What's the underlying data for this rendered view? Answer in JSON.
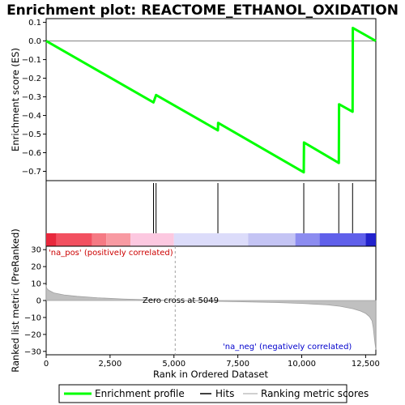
{
  "chart_data": {
    "type": "line",
    "title": "Enrichment plot: REACTOME_ETHANOL_OXIDATION",
    "xlabel": "Rank in Ordered Dataset",
    "xlim": [
      0,
      12900
    ],
    "x_ticks": [
      0,
      2500,
      5000,
      7500,
      10000,
      12500
    ],
    "x_tick_labels": [
      "0",
      "2,500",
      "5,000",
      "7,500",
      "10,000",
      "12,500"
    ],
    "es_panel": {
      "ylabel": "Enrichment score (ES)",
      "ylim": [
        -0.75,
        0.12
      ],
      "y_ticks": [
        0.1,
        0.0,
        -0.1,
        -0.2,
        -0.3,
        -0.4,
        -0.5,
        -0.6,
        -0.7
      ],
      "y_tick_labels": [
        "0.1",
        "0.0",
        "−0.1",
        "−0.2",
        "−0.3",
        "−0.4",
        "−0.5",
        "−0.6",
        "−0.7"
      ],
      "series": [
        {
          "name": "Enrichment profile",
          "color": "#00ff00",
          "x": [
            0,
            4200,
            4300,
            6720,
            6730,
            10080,
            10090,
            11450,
            11460,
            11990,
            12000,
            12900
          ],
          "y": [
            0.0,
            -0.33,
            -0.29,
            -0.48,
            -0.44,
            -0.705,
            -0.545,
            -0.655,
            -0.34,
            -0.38,
            0.07,
            0.0
          ]
        }
      ]
    },
    "hits": [
      4200,
      4300,
      6720,
      10080,
      11450,
      11990
    ],
    "color_band": {
      "segments": [
        {
          "x0": 0,
          "x1": 400,
          "color": "#e8283c"
        },
        {
          "x0": 400,
          "x1": 1800,
          "color": "#f25060"
        },
        {
          "x0": 1800,
          "x1": 2350,
          "color": "#f57a84"
        },
        {
          "x0": 2350,
          "x1": 3300,
          "color": "#f89aa2"
        },
        {
          "x0": 3300,
          "x1": 5000,
          "color": "#fcc8e0"
        },
        {
          "x0": 5000,
          "x1": 7900,
          "color": "#dcdcfa"
        },
        {
          "x0": 7900,
          "x1": 9750,
          "color": "#c4c4f4"
        },
        {
          "x0": 9750,
          "x1": 10700,
          "color": "#8c8cf0"
        },
        {
          "x0": 10700,
          "x1": 12500,
          "color": "#6060ea"
        },
        {
          "x0": 12500,
          "x1": 12900,
          "color": "#2222cc"
        }
      ]
    },
    "ranked_panel": {
      "ylabel": "Ranked list metric (PreRanked)",
      "ylim": [
        -32,
        32
      ],
      "y_ticks": [
        30,
        20,
        10,
        0,
        -10,
        -20,
        -30
      ],
      "y_tick_labels": [
        "30",
        "20",
        "10",
        "0",
        "−10",
        "−20",
        "−30"
      ],
      "x": [
        0,
        30,
        100,
        300,
        700,
        1200,
        2000,
        3000,
        4000,
        5049,
        6000,
        7500,
        9000,
        10000,
        11000,
        11500,
        12000,
        12300,
        12500,
        12650,
        12750,
        12800,
        12850,
        12900
      ],
      "y": [
        9,
        7,
        6,
        4.5,
        3.3,
        2.5,
        1.6,
        0.9,
        0.4,
        0,
        -0.3,
        -0.7,
        -1.2,
        -1.7,
        -2.6,
        -3.4,
        -4.8,
        -6.2,
        -7.6,
        -9.5,
        -12.0,
        -16.0,
        -23.0,
        -29.0
      ],
      "fill_color": "#c0c0c0",
      "zero_cross": 5049,
      "annotations": {
        "pos": "'na_pos' (positively correlated)",
        "neg": "'na_neg' (negatively correlated)",
        "zero": "Zero cross at 5049"
      }
    },
    "legend": [
      {
        "label": "Enrichment profile",
        "color": "#00ff00"
      },
      {
        "label": "Hits",
        "color": "#000000"
      },
      {
        "label": "Ranking metric scores",
        "color": "#c0c0c0"
      }
    ],
    "legend_placement": "bottom",
    "grid": false
  }
}
